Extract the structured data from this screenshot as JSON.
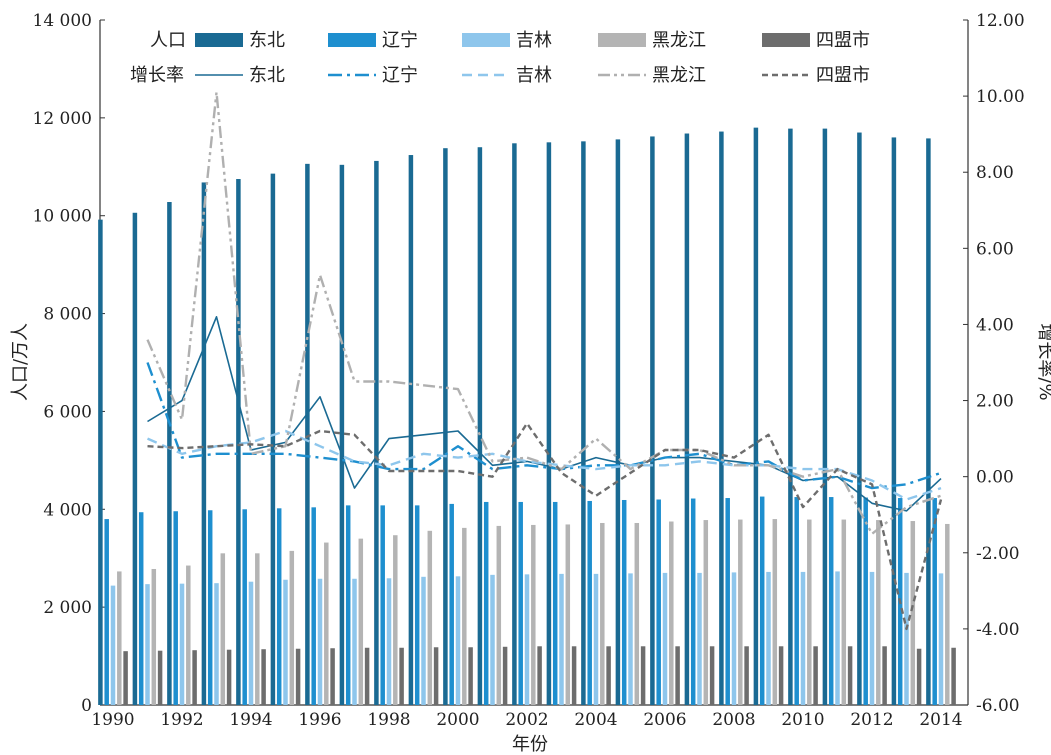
{
  "chart_data": {
    "type": "bar",
    "xlabel": "年份",
    "ylabel": "人口/万人",
    "y2label": "增长率/%",
    "ylim": [
      0,
      14000
    ],
    "y2lim": [
      -6,
      12
    ],
    "yticks": [
      "0",
      "2 000",
      "4 000",
      "6 000",
      "8 000",
      "10 000",
      "12 000",
      "14 000"
    ],
    "y2ticks": [
      "-6.00",
      "-4.00",
      "-2.00",
      "0.00",
      "2.00",
      "4.00",
      "6.00",
      "8.00",
      "10.00",
      "12.00"
    ],
    "xticks": [
      "1990",
      "1992",
      "1994",
      "1996",
      "1998",
      "2000",
      "2002",
      "2004",
      "2006",
      "2008",
      "2010",
      "2012",
      "2014"
    ],
    "legend_group1": "人口",
    "legend_group2": "增长率",
    "years": [
      1990,
      1991,
      1992,
      1993,
      1994,
      1995,
      1996,
      1997,
      1998,
      1999,
      2000,
      2001,
      2002,
      2003,
      2004,
      2005,
      2006,
      2007,
      2008,
      2009,
      2010,
      2011,
      2012,
      2013,
      2014
    ],
    "population_series": [
      {
        "name": "东北",
        "color": "#1a6a93",
        "values": [
          9920,
          10060,
          10280,
          10680,
          10750,
          10860,
          11060,
          11040,
          11120,
          11240,
          11380,
          11400,
          11480,
          11500,
          11520,
          11560,
          11620,
          11680,
          11720,
          11800,
          11780,
          11780,
          11700,
          11600,
          11580
        ]
      },
      {
        "name": "辽宁",
        "color": "#1e8fcf",
        "values": [
          3800,
          3940,
          3960,
          3980,
          4000,
          4020,
          4040,
          4080,
          4080,
          4080,
          4110,
          4150,
          4150,
          4150,
          4170,
          4190,
          4200,
          4220,
          4230,
          4260,
          4250,
          4250,
          4240,
          4230,
          4230
        ]
      },
      {
        "name": "吉林",
        "color": "#8ec6ec",
        "values": [
          2440,
          2470,
          2480,
          2490,
          2520,
          2560,
          2580,
          2580,
          2590,
          2620,
          2630,
          2660,
          2670,
          2680,
          2680,
          2690,
          2700,
          2700,
          2710,
          2720,
          2720,
          2730,
          2720,
          2700,
          2690
        ]
      },
      {
        "name": "黑龙江",
        "color": "#b4b4b4",
        "values": [
          2730,
          2780,
          2850,
          3100,
          3100,
          3150,
          3320,
          3400,
          3470,
          3560,
          3620,
          3660,
          3680,
          3690,
          3720,
          3720,
          3750,
          3780,
          3790,
          3800,
          3790,
          3790,
          3780,
          3760,
          3700
        ]
      },
      {
        "name": "四盟市",
        "color": "#6d6d6d",
        "values": [
          1100,
          1110,
          1120,
          1130,
          1140,
          1150,
          1160,
          1170,
          1170,
          1180,
          1180,
          1190,
          1200,
          1200,
          1200,
          1200,
          1200,
          1200,
          1200,
          1200,
          1200,
          1200,
          1200,
          1150,
          1170
        ]
      }
    ],
    "growth_series": [
      {
        "name": "东北",
        "color": "#1a6a93",
        "dash": "solid",
        "values": [
          null,
          1.45,
          2.0,
          4.2,
          0.7,
          0.9,
          2.1,
          -0.3,
          1.0,
          1.1,
          1.2,
          0.3,
          0.4,
          0.2,
          0.5,
          0.3,
          0.5,
          0.5,
          0.4,
          0.3,
          -0.1,
          0.0,
          -0.7,
          -0.9,
          -0.05
        ]
      },
      {
        "name": "辽宁",
        "color": "#1e8fcf",
        "dash": "dashdot",
        "values": [
          null,
          3.0,
          0.5,
          0.6,
          0.6,
          0.6,
          0.5,
          0.4,
          0.2,
          0.2,
          0.8,
          0.2,
          0.3,
          0.2,
          0.3,
          0.3,
          0.5,
          0.6,
          0.3,
          0.4,
          -0.1,
          0.0,
          -0.3,
          -0.2,
          0.1
        ]
      },
      {
        "name": "吉林",
        "color": "#8ec6ec",
        "dash": "dash",
        "values": [
          null,
          1.0,
          0.6,
          0.8,
          0.9,
          1.2,
          0.8,
          0.4,
          0.3,
          0.6,
          0.5,
          0.6,
          0.4,
          0.3,
          0.2,
          0.3,
          0.3,
          0.4,
          0.3,
          0.3,
          0.2,
          0.2,
          -0.1,
          -0.6,
          -0.3
        ]
      },
      {
        "name": "黑龙江",
        "color": "#b0b0b0",
        "dash": "dashdotdot",
        "values": [
          null,
          3.6,
          1.5,
          10.1,
          0.6,
          0.8,
          5.3,
          2.5,
          2.5,
          2.4,
          2.3,
          0.4,
          0.5,
          0.2,
          1.0,
          0.2,
          0.7,
          0.7,
          0.3,
          0.3,
          0.0,
          0.2,
          -1.5,
          -0.8,
          -0.5
        ]
      },
      {
        "name": "四盟市",
        "color": "#6d6d6d",
        "dash": "shortdash",
        "values": [
          null,
          0.8,
          0.75,
          0.8,
          0.85,
          0.8,
          1.2,
          1.1,
          0.15,
          0.15,
          0.15,
          0.0,
          1.4,
          0.1,
          -0.5,
          0.1,
          0.7,
          0.7,
          0.5,
          1.1,
          -0.8,
          0.2,
          -0.2,
          -4.0,
          -0.6
        ]
      }
    ]
  }
}
